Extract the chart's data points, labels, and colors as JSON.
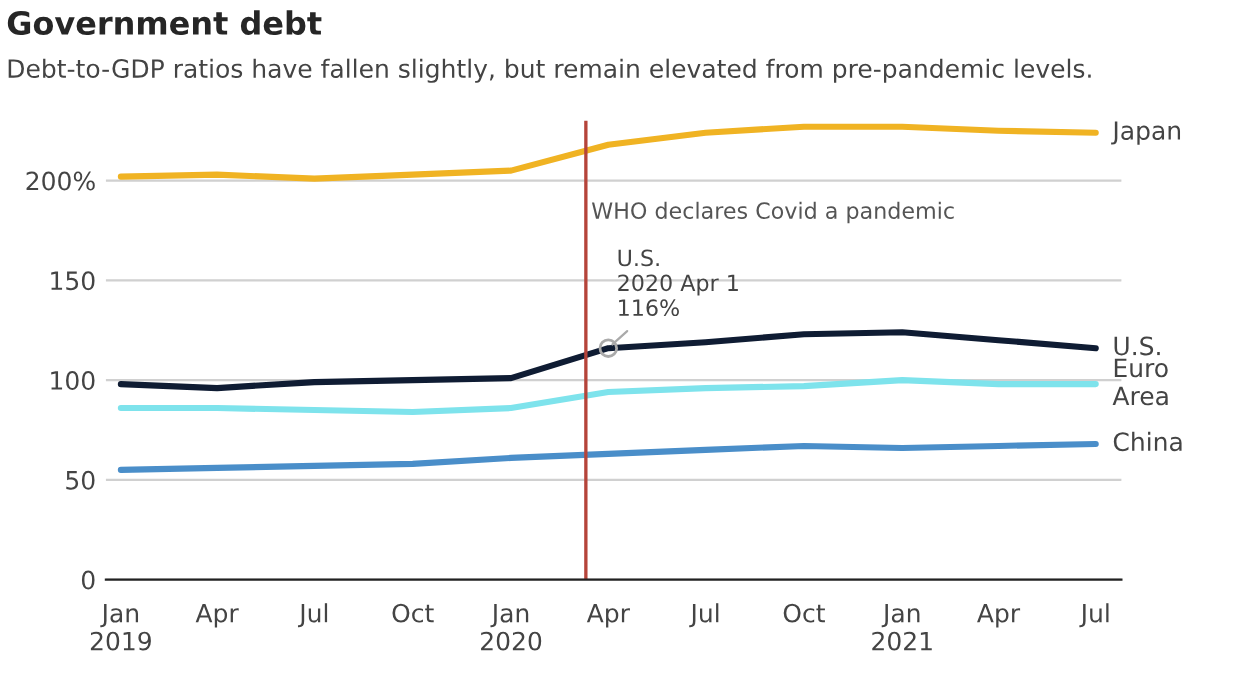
{
  "chart_data": {
    "type": "line",
    "title": "Government debt",
    "subtitle": "Debt-to-GDP ratios have fallen slightly, but remain elevated from pre-pandemic levels.",
    "x": [
      "2019-01",
      "2019-04",
      "2019-07",
      "2019-10",
      "2020-01",
      "2020-04",
      "2020-07",
      "2020-10",
      "2021-01",
      "2021-04",
      "2021-07"
    ],
    "series": [
      {
        "name": "Japan",
        "color": "#f0b323",
        "values": [
          202,
          203,
          201,
          203,
          205,
          218,
          224,
          227,
          227,
          225,
          224
        ]
      },
      {
        "name": "U.S.",
        "color": "#0f1c33",
        "values": [
          98,
          96,
          99,
          100,
          101,
          116,
          119,
          123,
          124,
          120,
          116
        ]
      },
      {
        "name": "Euro\nArea",
        "color": "#7ee3ec",
        "values": [
          86,
          86,
          85,
          84,
          86,
          94,
          96,
          97,
          100,
          98,
          98
        ]
      },
      {
        "name": "China",
        "color": "#4a8ec9",
        "values": [
          55,
          56,
          57,
          58,
          61,
          63,
          65,
          67,
          66,
          67,
          68
        ]
      }
    ],
    "xlim": [
      "2018-12-18",
      "2021-07-25"
    ],
    "xticks": [
      {
        "value": "2019-01",
        "label": "Jan\n2019"
      },
      {
        "value": "2019-04",
        "label": "Apr"
      },
      {
        "value": "2019-07",
        "label": "Jul"
      },
      {
        "value": "2019-10",
        "label": "Oct"
      },
      {
        "value": "2020-01",
        "label": "Jan\n2020"
      },
      {
        "value": "2020-04",
        "label": "Apr"
      },
      {
        "value": "2020-07",
        "label": "Jul"
      },
      {
        "value": "2020-10",
        "label": "Oct"
      },
      {
        "value": "2021-01",
        "label": "Jan\n2021"
      },
      {
        "value": "2021-04",
        "label": "Apr"
      },
      {
        "value": "2021-07",
        "label": "Jul"
      }
    ],
    "ylim": [
      0,
      230
    ],
    "yticks": [
      0,
      50,
      100,
      150,
      {
        "value": 200,
        "label": "200%"
      }
    ],
    "grid": "y",
    "legend": false,
    "ref_lines": [
      {
        "axis": "x",
        "value": "2020-03-11",
        "label": "WHO declares Covid a pandemic",
        "color": "#b5443a"
      }
    ],
    "annotations": [
      {
        "text": "U.S.\n2020 Apr 1\n116%",
        "x": "2020-04-01",
        "y": 116
      }
    ]
  }
}
